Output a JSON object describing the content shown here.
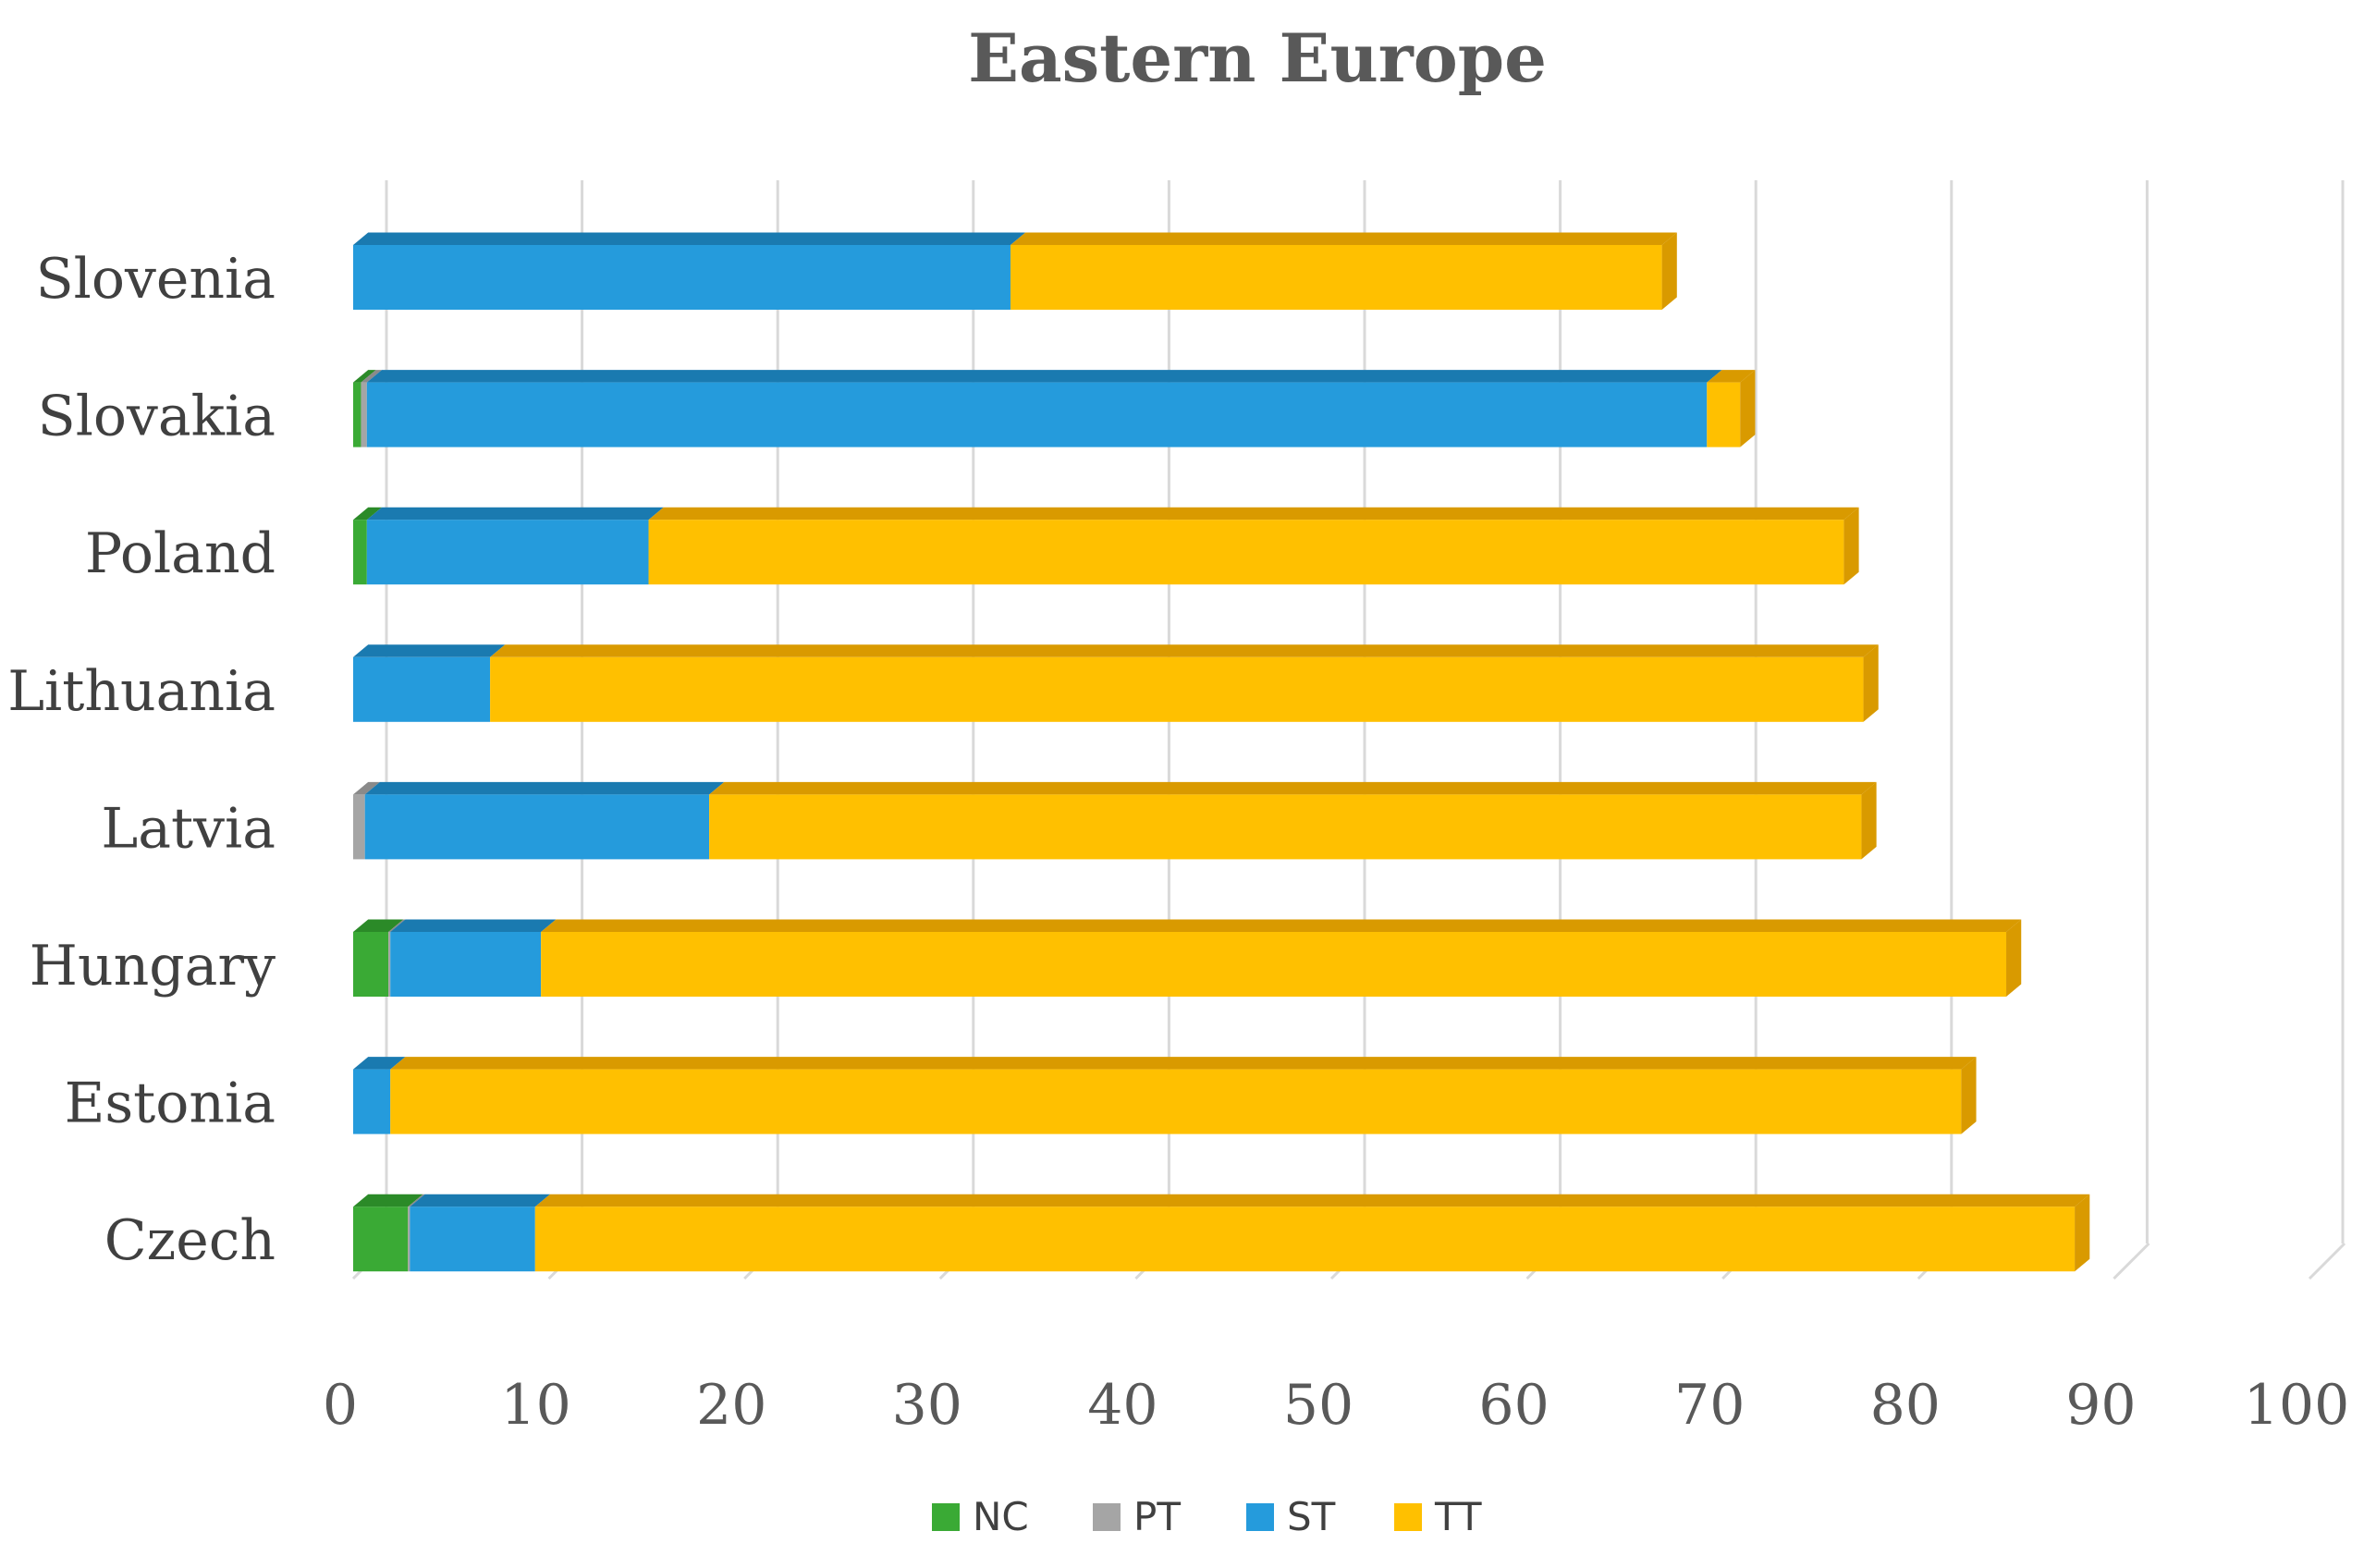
{
  "chart_data": {
    "type": "bar",
    "orientation": "horizontal",
    "stacked": true,
    "three_d": true,
    "title": "Eastern Europe",
    "xlabel": "",
    "ylabel": "",
    "xlim": [
      0,
      100
    ],
    "x_ticks": [
      "0",
      "10",
      "20",
      "30",
      "40",
      "50",
      "60",
      "70",
      "80",
      "90",
      "100"
    ],
    "grid": true,
    "legend_position": "bottom",
    "categories": [
      "Slovenia",
      "Slovakia",
      "Poland",
      "Lithuania",
      "Latvia",
      "Hungary",
      "Estonia",
      "Czech"
    ],
    "series": [
      {
        "name": "NC",
        "color": "#3aaa35",
        "top_color": "#2b8a28",
        "values": [
          0,
          0.4,
          0.7,
          0,
          0,
          1.8,
          0,
          2.8
        ]
      },
      {
        "name": "PT",
        "color": "#a5a5a5",
        "top_color": "#8a8a8a",
        "values": [
          0,
          0.3,
          0,
          0,
          0.6,
          0.1,
          0,
          0.1
        ]
      },
      {
        "name": "ST",
        "color": "#259bdc",
        "top_color": "#1a7ab0",
        "values": [
          33.6,
          68.5,
          14.4,
          7.0,
          17.6,
          7.7,
          1.9,
          6.4
        ]
      },
      {
        "name": "TT",
        "color": "#ffc000",
        "top_color": "#d99a00",
        "values": [
          33.3,
          1.7,
          61.1,
          70.2,
          58.9,
          74.9,
          80.3,
          78.7
        ]
      }
    ]
  }
}
